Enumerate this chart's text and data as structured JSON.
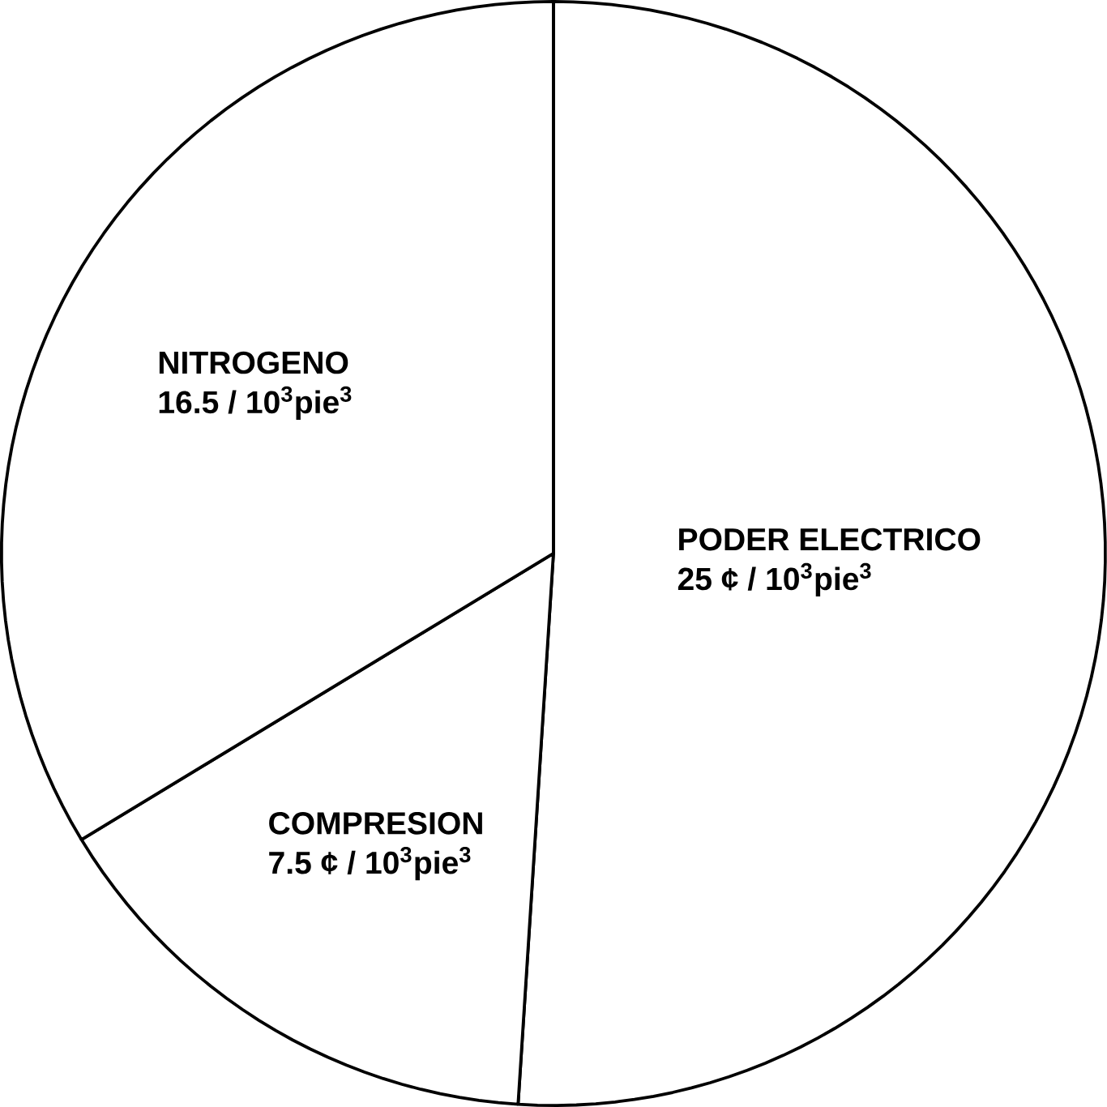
{
  "chart_data": {
    "type": "pie",
    "categories": [
      "PODER ELECTRICO",
      "COMPRESION",
      "NITROGENO"
    ],
    "values": [
      25,
      7.5,
      16.5
    ],
    "value_labels": [
      "25 ¢ / 10$^{3}$pie$^{3}$",
      "7.5 ¢ / 10$^{3}$pie$^{3}$",
      "16.5 / 10$^{3}$pie$^{3}$"
    ],
    "colors": [
      "#ffffff",
      "#ffffff",
      "#ffffff"
    ]
  }
}
